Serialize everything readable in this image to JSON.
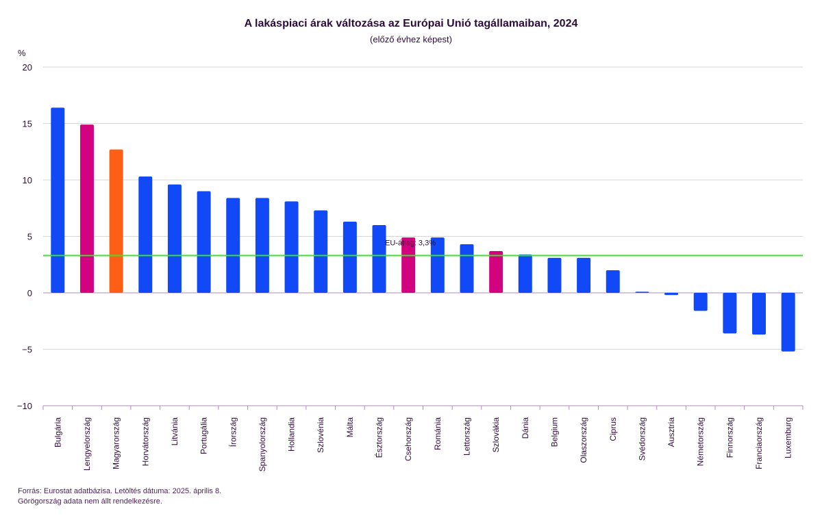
{
  "chart_data": {
    "type": "bar",
    "title": "A lakáspiaci árak változása az Európai Unió tagállamaiban, 2024",
    "subtitle": "(előző évhez képest)",
    "ylabel": "%",
    "xlabel": "",
    "ylim": [
      -10,
      20
    ],
    "yticks": [
      {
        "value": 20,
        "label": "20"
      },
      {
        "value": 15,
        "label": "15"
      },
      {
        "value": 10,
        "label": "10"
      },
      {
        "value": 5,
        "label": "5"
      },
      {
        "value": 0,
        "label": "0"
      },
      {
        "value": -5,
        "label": "−5"
      },
      {
        "value": -10,
        "label": "−10"
      }
    ],
    "grid": true,
    "categories": [
      "Bulgária",
      "Lengyelország",
      "Magyarország",
      "Horvátország",
      "Litvánia",
      "Portugália",
      "Írország",
      "Spanyolország",
      "Hollandia",
      "Szlovénia",
      "Málta",
      "Észtország",
      "Csehország",
      "Románia",
      "Lettország",
      "Szlovákia",
      "Dánia",
      "Belgium",
      "Olaszország",
      "Ciprus",
      "Svédország",
      "Ausztria",
      "Németország",
      "Finnország",
      "Franciaország",
      "Luxemburg"
    ],
    "values": [
      16.4,
      14.9,
      12.7,
      10.3,
      9.6,
      9.0,
      8.4,
      8.4,
      8.1,
      7.3,
      6.3,
      6.0,
      4.9,
      4.9,
      4.3,
      3.7,
      3.4,
      3.1,
      3.1,
      2.0,
      0.1,
      -0.2,
      -1.6,
      -3.6,
      -3.7,
      -5.2
    ],
    "bar_colors": [
      "#1049f5",
      "#d3037f",
      "#ff5e14",
      "#1049f5",
      "#1049f5",
      "#1049f5",
      "#1049f5",
      "#1049f5",
      "#1049f5",
      "#1049f5",
      "#1049f5",
      "#1049f5",
      "#d3037f",
      "#1049f5",
      "#1049f5",
      "#d3037f",
      "#1049f5",
      "#1049f5",
      "#1049f5",
      "#1049f5",
      "#1049f5",
      "#1049f5",
      "#1049f5",
      "#1049f5",
      "#1049f5",
      "#1049f5"
    ],
    "reference_line": {
      "value": 3.3,
      "label": "EU-átlag: 3,3%",
      "color": "#3de22a"
    }
  },
  "footnotes": {
    "source": "Forrás: Eurostat adatbázisa. Letöltés dátuma: 2025. április 8.",
    "note": "Görögország adata nem állt rendelkezésre."
  }
}
